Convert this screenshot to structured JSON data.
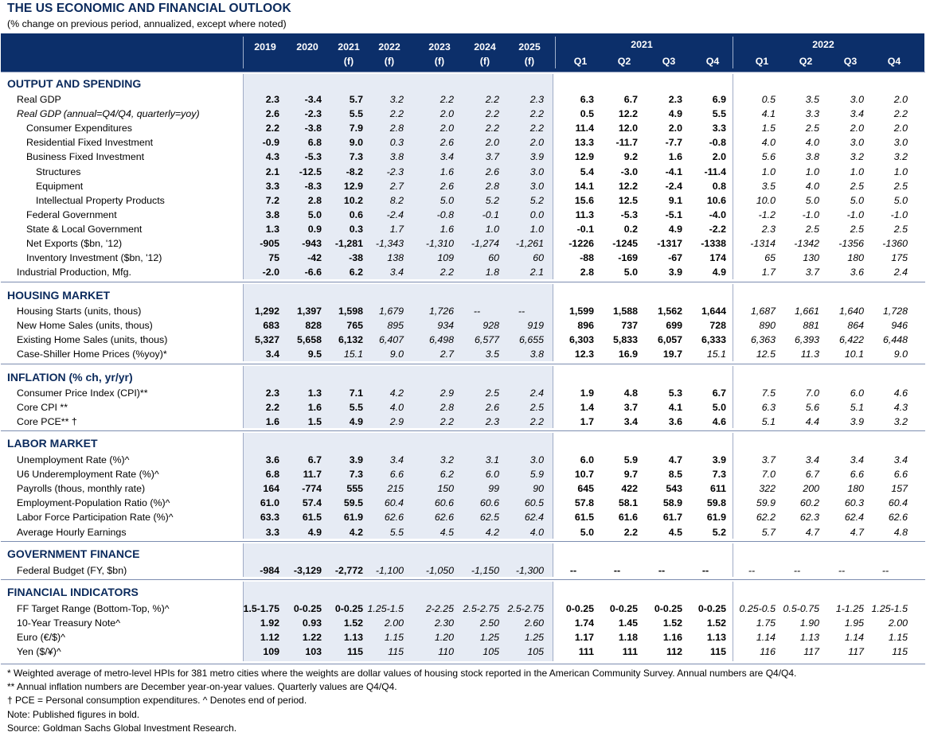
{
  "title": "THE US ECONOMIC AND FINANCIAL OUTLOOK",
  "subtitle": "(% change on previous period, annualized, except where noted)",
  "header": {
    "annual": [
      {
        "year": "2019",
        "sub": ""
      },
      {
        "year": "2020",
        "sub": ""
      },
      {
        "year": "2021",
        "sub": "(f)"
      },
      {
        "year": "2022",
        "sub": "(f)"
      },
      {
        "year": "2023",
        "sub": "(f)"
      },
      {
        "year": "2024",
        "sub": "(f)"
      },
      {
        "year": "2025",
        "sub": "(f)"
      }
    ],
    "year_2021": "2021",
    "year_2022": "2022",
    "quarters": [
      "Q1",
      "Q2",
      "Q3",
      "Q4",
      "Q1",
      "Q2",
      "Q3",
      "Q4"
    ]
  },
  "sections": [
    {
      "name": "OUTPUT AND SPENDING",
      "rows": [
        {
          "label": "Real GDP",
          "indent": 0,
          "italic_label": false,
          "values": [
            "2.3",
            "-3.4",
            "5.7",
            "3.2",
            "2.2",
            "2.2",
            "2.3",
            "6.3",
            "6.7",
            "2.3",
            "6.9",
            "0.5",
            "3.5",
            "3.0",
            "2.0"
          ]
        },
        {
          "label": "Real GDP (annual=Q4/Q4, quarterly=yoy)",
          "indent": 0,
          "italic_label": true,
          "values": [
            "2.6",
            "-2.3",
            "5.5",
            "2.2",
            "2.0",
            "2.2",
            "2.2",
            "0.5",
            "12.2",
            "4.9",
            "5.5",
            "4.1",
            "3.3",
            "3.4",
            "2.2"
          ]
        },
        {
          "label": "Consumer Expenditures",
          "indent": 1,
          "italic_label": false,
          "values": [
            "2.2",
            "-3.8",
            "7.9",
            "2.8",
            "2.0",
            "2.2",
            "2.2",
            "11.4",
            "12.0",
            "2.0",
            "3.3",
            "1.5",
            "2.5",
            "2.0",
            "2.0"
          ]
        },
        {
          "label": "Residential Fixed Investment",
          "indent": 1,
          "italic_label": false,
          "values": [
            "-0.9",
            "6.8",
            "9.0",
            "0.3",
            "2.6",
            "2.0",
            "2.0",
            "13.3",
            "-11.7",
            "-7.7",
            "-0.8",
            "4.0",
            "4.0",
            "3.0",
            "3.0"
          ]
        },
        {
          "label": "Business Fixed Investment",
          "indent": 1,
          "italic_label": false,
          "values": [
            "4.3",
            "-5.3",
            "7.3",
            "3.8",
            "3.4",
            "3.7",
            "3.9",
            "12.9",
            "9.2",
            "1.6",
            "2.0",
            "5.6",
            "3.8",
            "3.2",
            "3.2"
          ]
        },
        {
          "label": "Structures",
          "indent": 2,
          "italic_label": false,
          "values": [
            "2.1",
            "-12.5",
            "-8.2",
            "-2.3",
            "1.6",
            "2.6",
            "3.0",
            "5.4",
            "-3.0",
            "-4.1",
            "-11.4",
            "1.0",
            "1.0",
            "1.0",
            "1.0"
          ]
        },
        {
          "label": "Equipment",
          "indent": 2,
          "italic_label": false,
          "values": [
            "3.3",
            "-8.3",
            "12.9",
            "2.7",
            "2.6",
            "2.8",
            "3.0",
            "14.1",
            "12.2",
            "-2.4",
            "0.8",
            "3.5",
            "4.0",
            "2.5",
            "2.5"
          ]
        },
        {
          "label": "Intellectual Property Products",
          "indent": 2,
          "italic_label": false,
          "values": [
            "7.2",
            "2.8",
            "10.2",
            "8.2",
            "5.0",
            "5.2",
            "5.2",
            "15.6",
            "12.5",
            "9.1",
            "10.6",
            "10.0",
            "5.0",
            "5.0",
            "5.0"
          ]
        },
        {
          "label": "Federal Government",
          "indent": 1,
          "italic_label": false,
          "values": [
            "3.8",
            "5.0",
            "0.6",
            "-2.4",
            "-0.8",
            "-0.1",
            "0.0",
            "11.3",
            "-5.3",
            "-5.1",
            "-4.0",
            "-1.2",
            "-1.0",
            "-1.0",
            "-1.0"
          ]
        },
        {
          "label": "State & Local Government",
          "indent": 1,
          "italic_label": false,
          "values": [
            "1.3",
            "0.9",
            "0.3",
            "1.7",
            "1.6",
            "1.0",
            "1.0",
            "-0.1",
            "0.2",
            "4.9",
            "-2.2",
            "2.3",
            "2.5",
            "2.5",
            "2.5"
          ]
        },
        {
          "label": "Net Exports ($bn, '12)",
          "indent": 1,
          "italic_label": false,
          "values": [
            "-905",
            "-943",
            "-1,281",
            "-1,343",
            "-1,310",
            "-1,274",
            "-1,261",
            "-1226",
            "-1245",
            "-1317",
            "-1338",
            "-1314",
            "-1342",
            "-1356",
            "-1360"
          ]
        },
        {
          "label": "Inventory Investment ($bn, '12)",
          "indent": 1,
          "italic_label": false,
          "values": [
            "75",
            "-42",
            "-38",
            "138",
            "109",
            "60",
            "60",
            "-88",
            "-169",
            "-67",
            "174",
            "65",
            "130",
            "180",
            "175"
          ]
        },
        {
          "label": "Industrial Production, Mfg.",
          "indent": 0,
          "italic_label": false,
          "values": [
            "-2.0",
            "-6.6",
            "6.2",
            "3.4",
            "2.2",
            "1.8",
            "2.1",
            "2.8",
            "5.0",
            "3.9",
            "4.9",
            "1.7",
            "3.7",
            "3.6",
            "2.4"
          ]
        }
      ]
    },
    {
      "name": "HOUSING MARKET",
      "rows": [
        {
          "label": "Housing Starts (units, thous)",
          "indent": 0,
          "italic_label": false,
          "values": [
            "1,292",
            "1,397",
            "1,598",
            "1,679",
            "1,726",
            "--",
            "--",
            "1,599",
            "1,588",
            "1,562",
            "1,644",
            "1,687",
            "1,661",
            "1,640",
            "1,728"
          ]
        },
        {
          "label": "New Home Sales (units, thous)",
          "indent": 0,
          "italic_label": false,
          "values": [
            "683",
            "828",
            "765",
            "895",
            "934",
            "928",
            "919",
            "896",
            "737",
            "699",
            "728",
            "890",
            "881",
            "864",
            "946"
          ]
        },
        {
          "label": "Existing Home Sales (units, thous)",
          "indent": 0,
          "italic_label": false,
          "values": [
            "5,327",
            "5,658",
            "6,132",
            "6,407",
            "6,498",
            "6,577",
            "6,655",
            "6,303",
            "5,833",
            "6,057",
            "6,333",
            "6,363",
            "6,393",
            "6,422",
            "6,448"
          ]
        },
        {
          "label": "Case-Shiller Home Prices (%yoy)*",
          "indent": 0,
          "italic_label": false,
          "values": [
            "3.4",
            "9.5",
            "15.1",
            "9.0",
            "2.7",
            "3.5",
            "3.8",
            "12.3",
            "16.9",
            "19.7",
            "15.1",
            "12.5",
            "11.3",
            "10.1",
            "9.0"
          ],
          "bold_count": 2,
          "q_bold_count": 3
        }
      ]
    },
    {
      "name": "INFLATION (% ch, yr/yr)",
      "rows": [
        {
          "label": "Consumer Price Index (CPI)**",
          "indent": 0,
          "italic_label": false,
          "values": [
            "2.3",
            "1.3",
            "7.1",
            "4.2",
            "2.9",
            "2.5",
            "2.4",
            "1.9",
            "4.8",
            "5.3",
            "6.7",
            "7.5",
            "7.0",
            "6.0",
            "4.6"
          ]
        },
        {
          "label": "Core CPI **",
          "indent": 0,
          "italic_label": false,
          "values": [
            "2.2",
            "1.6",
            "5.5",
            "4.0",
            "2.8",
            "2.6",
            "2.5",
            "1.4",
            "3.7",
            "4.1",
            "5.0",
            "6.3",
            "5.6",
            "5.1",
            "4.3"
          ]
        },
        {
          "label": "Core PCE** †",
          "indent": 0,
          "italic_label": false,
          "values": [
            "1.6",
            "1.5",
            "4.9",
            "2.9",
            "2.2",
            "2.3",
            "2.2",
            "1.7",
            "3.4",
            "3.6",
            "4.6",
            "5.1",
            "4.4",
            "3.9",
            "3.2"
          ]
        }
      ]
    },
    {
      "name": "LABOR MARKET",
      "rows": [
        {
          "label": "Unemployment Rate (%)^",
          "indent": 0,
          "italic_label": false,
          "values": [
            "3.6",
            "6.7",
            "3.9",
            "3.4",
            "3.2",
            "3.1",
            "3.0",
            "6.0",
            "5.9",
            "4.7",
            "3.9",
            "3.7",
            "3.4",
            "3.4",
            "3.4"
          ]
        },
        {
          "label": "U6 Underemployment Rate (%)^",
          "indent": 0,
          "italic_label": false,
          "values": [
            "6.8",
            "11.7",
            "7.3",
            "6.6",
            "6.2",
            "6.0",
            "5.9",
            "10.7",
            "9.7",
            "8.5",
            "7.3",
            "7.0",
            "6.7",
            "6.6",
            "6.6"
          ]
        },
        {
          "label": "Payrolls (thous, monthly rate)",
          "indent": 0,
          "italic_label": false,
          "values": [
            "164",
            "-774",
            "555",
            "215",
            "150",
            "99",
            "90",
            "645",
            "422",
            "543",
            "611",
            "322",
            "200",
            "180",
            "157"
          ]
        },
        {
          "label": "Employment-Population Ratio (%)^",
          "indent": 0,
          "italic_label": false,
          "values": [
            "61.0",
            "57.4",
            "59.5",
            "60.4",
            "60.6",
            "60.6",
            "60.5",
            "57.8",
            "58.1",
            "58.9",
            "59.8",
            "59.9",
            "60.2",
            "60.3",
            "60.4"
          ]
        },
        {
          "label": "Labor Force Participation Rate (%)^",
          "indent": 0,
          "italic_label": false,
          "values": [
            "63.3",
            "61.5",
            "61.9",
            "62.6",
            "62.6",
            "62.5",
            "62.4",
            "61.5",
            "61.6",
            "61.7",
            "61.9",
            "62.2",
            "62.3",
            "62.4",
            "62.6"
          ]
        },
        {
          "label": "Average Hourly Earnings",
          "indent": 0,
          "italic_label": false,
          "values": [
            "3.3",
            "4.9",
            "4.2",
            "5.5",
            "4.5",
            "4.2",
            "4.0",
            "5.0",
            "2.2",
            "4.5",
            "5.2",
            "5.7",
            "4.7",
            "4.7",
            "4.8"
          ]
        }
      ]
    },
    {
      "name": "GOVERNMENT FINANCE",
      "rows": [
        {
          "label": "Federal Budget (FY, $bn)",
          "indent": 0,
          "italic_label": false,
          "values": [
            "-984",
            "-3,129",
            "-2,772",
            "-1,100",
            "-1,050",
            "-1,150",
            "-1,300",
            "--",
            "--",
            "--",
            "--",
            "--",
            "--",
            "--",
            "--"
          ]
        }
      ]
    },
    {
      "name": "FINANCIAL INDICATORS",
      "rows": [
        {
          "label": "FF Target Range (Bottom-Top, %)^",
          "indent": 0,
          "italic_label": false,
          "values": [
            "1.5-1.75",
            "0-0.25",
            "0-0.25",
            "1.25-1.5",
            "2-2.25",
            "2.5-2.75",
            "2.5-2.75",
            "0-0.25",
            "0-0.25",
            "0-0.25",
            "0-0.25",
            "0.25-0.5",
            "0.5-0.75",
            "1-1.25",
            "1.25-1.5"
          ]
        },
        {
          "label": "10-Year Treasury Note^",
          "indent": 0,
          "italic_label": false,
          "values": [
            "1.92",
            "0.93",
            "1.52",
            "2.00",
            "2.30",
            "2.50",
            "2.60",
            "1.74",
            "1.45",
            "1.52",
            "1.52",
            "1.75",
            "1.90",
            "1.95",
            "2.00"
          ]
        },
        {
          "label": "Euro (€/$)^",
          "indent": 0,
          "italic_label": false,
          "values": [
            "1.12",
            "1.22",
            "1.13",
            "1.15",
            "1.20",
            "1.25",
            "1.25",
            "1.17",
            "1.18",
            "1.16",
            "1.13",
            "1.14",
            "1.13",
            "1.14",
            "1.15"
          ]
        },
        {
          "label": "Yen ($/¥)^",
          "indent": 0,
          "italic_label": false,
          "values": [
            "109",
            "103",
            "115",
            "115",
            "110",
            "105",
            "105",
            "111",
            "111",
            "112",
            "115",
            "116",
            "117",
            "117",
            "115"
          ]
        }
      ]
    }
  ],
  "notes": [
    "* Weighted average of metro-level HPIs for 381 metro cities where the weights are dollar values of housing stock reported in the American Community Survey. Annual numbers are Q4/Q4.",
    "** Annual inflation numbers are December year-on-year values. Quarterly values are Q4/Q4.",
    "† PCE = Personal consumption expenditures.  ^ Denotes end of period.",
    "Note: Published figures in bold.",
    "Source: Goldman Sachs Global Investment Research."
  ],
  "colors": {
    "header_bg": "#0c2f6a",
    "section_title": "#0b2a5c",
    "shade": "#e6ebf4"
  }
}
